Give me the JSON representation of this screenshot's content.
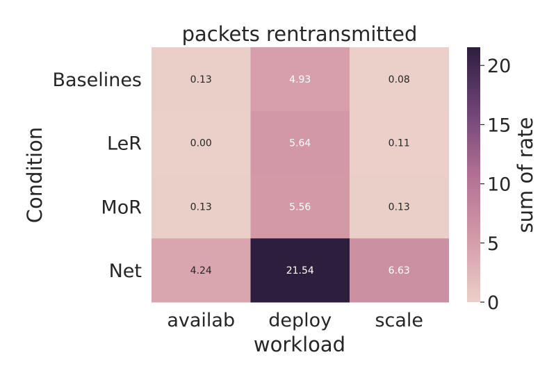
{
  "chart_data": {
    "type": "heatmap",
    "title": "packets rentransmitted",
    "xlabel": "workload",
    "ylabel": "Condition",
    "x_categories": [
      "availab",
      "deploy",
      "scale"
    ],
    "y_categories": [
      "Baselines",
      "LeR",
      "MoR",
      "Net"
    ],
    "values": [
      [
        0.13,
        4.93,
        0.08
      ],
      [
        0.0,
        5.64,
        0.11
      ],
      [
        0.13,
        5.56,
        0.13
      ],
      [
        4.24,
        21.54,
        6.63
      ]
    ],
    "value_labels": [
      [
        "0.13",
        "4.93",
        "0.08"
      ],
      [
        "0.00",
        "5.64",
        "0.11"
      ],
      [
        "0.13",
        "5.56",
        "0.13"
      ],
      [
        "4.24",
        "21.54",
        "6.63"
      ]
    ],
    "colorbar": {
      "label": "sum of rate",
      "range": [
        0,
        21.54
      ],
      "ticks": [
        0,
        5,
        10,
        15,
        20
      ],
      "tick_labels": [
        "0",
        "5",
        "10",
        "15",
        "20"
      ]
    },
    "colormap": {
      "low": "#ebd0c9",
      "mid": "#b36f93",
      "high": "#2d1e3e"
    }
  }
}
